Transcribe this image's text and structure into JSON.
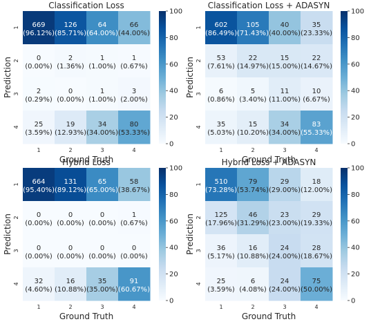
{
  "chart_data": [
    {
      "type": "heatmap",
      "title": "Classification Loss",
      "xlabel": "Ground Truth",
      "ylabel": "Prediction",
      "x_tick_labels": [
        "1",
        "2",
        "3",
        "4"
      ],
      "y_tick_labels": [
        "1",
        "2",
        "3",
        "4"
      ],
      "counts": [
        [
          669,
          126,
          64,
          66
        ],
        [
          0,
          2,
          1,
          1
        ],
        [
          2,
          0,
          1,
          3
        ],
        [
          25,
          19,
          34,
          80
        ]
      ],
      "percents": [
        [
          "96.12%",
          "85.71%",
          "64.00%",
          "44.00%"
        ],
        [
          "0.00%",
          "1.36%",
          "1.00%",
          "0.67%"
        ],
        [
          "0.29%",
          "0.00%",
          "1.00%",
          "2.00%"
        ],
        [
          "3.59%",
          "12.93%",
          "34.00%",
          "53.33%"
        ]
      ],
      "colorbar_ticks": [
        "0",
        "20",
        "40",
        "60",
        "80",
        "100"
      ],
      "vrange": [
        0,
        100
      ]
    },
    {
      "type": "heatmap",
      "title": "Classification Loss + ADASYN",
      "xlabel": "Ground Truth",
      "ylabel": "Prediction",
      "x_tick_labels": [
        "1",
        "2",
        "3",
        "4"
      ],
      "y_tick_labels": [
        "1",
        "2",
        "3",
        "4"
      ],
      "counts": [
        [
          602,
          105,
          40,
          35
        ],
        [
          53,
          22,
          15,
          22
        ],
        [
          6,
          5,
          11,
          10
        ],
        [
          35,
          15,
          34,
          83
        ]
      ],
      "percents": [
        [
          "86.49%",
          "71.43%",
          "40.00%",
          "23.33%"
        ],
        [
          "7.61%",
          "14.97%",
          "15.00%",
          "14.67%"
        ],
        [
          "0.86%",
          "3.40%",
          "11.00%",
          "6.67%"
        ],
        [
          "5.03%",
          "10.20%",
          "34.00%",
          "55.33%"
        ]
      ],
      "colorbar_ticks": [
        "0",
        "20",
        "40",
        "60",
        "80",
        "100"
      ],
      "vrange": [
        0,
        100
      ]
    },
    {
      "type": "heatmap",
      "title": "Hybrid Loss",
      "xlabel": "Ground Truth",
      "ylabel": "Prediction",
      "x_tick_labels": [
        "1",
        "2",
        "3",
        "4"
      ],
      "y_tick_labels": [
        "1",
        "2",
        "3",
        "4"
      ],
      "counts": [
        [
          664,
          131,
          65,
          58
        ],
        [
          0,
          0,
          0,
          1
        ],
        [
          0,
          0,
          0,
          0
        ],
        [
          32,
          16,
          35,
          91
        ]
      ],
      "percents": [
        [
          "95.40%",
          "89.12%",
          "65.00%",
          "38.67%"
        ],
        [
          "0.00%",
          "0.00%",
          "0.00%",
          "0.67%"
        ],
        [
          "0.00%",
          "0.00%",
          "0.00%",
          "0.00%"
        ],
        [
          "4.60%",
          "10.88%",
          "35.00%",
          "60.67%"
        ]
      ],
      "colorbar_ticks": [
        "0",
        "20",
        "40",
        "60",
        "80",
        "100"
      ],
      "vrange": [
        0,
        100
      ]
    },
    {
      "type": "heatmap",
      "title": "Hybrid Loss + ADASYN",
      "xlabel": "Ground Truth",
      "ylabel": "Prediction",
      "x_tick_labels": [
        "1",
        "2",
        "3",
        "4"
      ],
      "y_tick_labels": [
        "1",
        "2",
        "3",
        "4"
      ],
      "counts": [
        [
          510,
          79,
          29,
          18
        ],
        [
          125,
          46,
          23,
          29
        ],
        [
          36,
          16,
          24,
          28
        ],
        [
          25,
          6,
          24,
          75
        ]
      ],
      "percents": [
        [
          "73.28%",
          "53.74%",
          "29.00%",
          "12.00%"
        ],
        [
          "17.96%",
          "31.29%",
          "23.00%",
          "19.33%"
        ],
        [
          "5.17%",
          "10.88%",
          "24.00%",
          "18.67%"
        ],
        [
          "3.59%",
          "4.08%",
          "24.00%",
          "50.00%"
        ]
      ],
      "colorbar_ticks": [
        "0",
        "20",
        "40",
        "60",
        "80",
        "100"
      ],
      "vrange": [
        0,
        100
      ]
    }
  ],
  "colormap": "Blues",
  "colors": {
    "low": "#f7fbff",
    "mid": "#6baed6",
    "high": "#08306b",
    "text_dark": "#262626",
    "text_light": "#ffffff"
  }
}
